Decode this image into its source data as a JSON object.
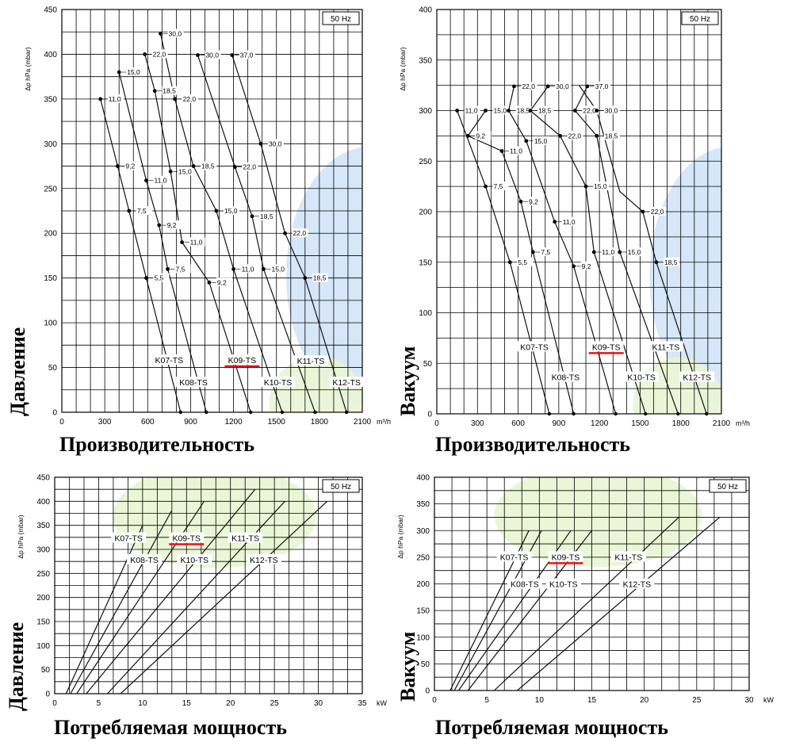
{
  "chart_data": [
    {
      "id": "pressure-flow",
      "type": "line",
      "xlim": [
        0,
        2100
      ],
      "ylim": [
        0,
        450
      ],
      "xticks": [
        0,
        300,
        600,
        900,
        1200,
        1500,
        1800,
        2100
      ],
      "yticks": [
        0,
        50,
        100,
        150,
        200,
        250,
        300,
        350,
        400,
        450
      ],
      "x_unit": "m³/h",
      "ylabel": "Δp hPa (mbar)",
      "frequency": "50 Hz",
      "xlabel_big": "Производительность",
      "ylabel_big": "Давление",
      "highlight_series": "K09-TS",
      "series": [
        {
          "name": "K07-TS",
          "points": [
            [
              270,
              350
            ],
            [
              390,
              275
            ],
            [
              470,
              225
            ],
            [
              590,
              150
            ],
            [
              830,
              0
            ]
          ]
        },
        {
          "name": "K08-TS",
          "points": [
            [
              400,
              380
            ],
            [
              590,
              259
            ],
            [
              680,
              209
            ],
            [
              740,
              160
            ],
            [
              1010,
              0
            ]
          ]
        },
        {
          "name": "K09-TS",
          "points": [
            [
              580,
              400
            ],
            [
              650,
              359
            ],
            [
              760,
              269
            ],
            [
              840,
              190
            ],
            [
              1030,
              145
            ],
            [
              1320,
              0
            ]
          ]
        },
        {
          "name": "K10-TS",
          "points": [
            [
              690,
              423
            ],
            [
              790,
              350
            ],
            [
              920,
              275
            ],
            [
              1080,
              225
            ],
            [
              1200,
              160
            ],
            [
              1540,
              0
            ]
          ]
        },
        {
          "name": "K11-TS",
          "points": [
            [
              950,
              399
            ],
            [
              1210,
              274
            ],
            [
              1330,
              219
            ],
            [
              1410,
              160
            ],
            [
              1770,
              0
            ]
          ]
        },
        {
          "name": "K12-TS",
          "points": [
            [
              1190,
              399
            ],
            [
              1390,
              300
            ],
            [
              1560,
              200
            ],
            [
              1700,
              150
            ],
            [
              1990,
              0
            ]
          ]
        }
      ],
      "point_labels": [
        {
          "x": 270,
          "y": 350,
          "text": "11,0"
        },
        {
          "x": 390,
          "y": 275,
          "text": "9,2"
        },
        {
          "x": 470,
          "y": 225,
          "text": "7,5"
        },
        {
          "x": 590,
          "y": 150,
          "text": "5,5"
        },
        {
          "x": 400,
          "y": 380,
          "text": "15,0"
        },
        {
          "x": 590,
          "y": 259,
          "text": "11,0"
        },
        {
          "x": 680,
          "y": 209,
          "text": "9,2"
        },
        {
          "x": 740,
          "y": 160,
          "text": "7,5"
        },
        {
          "x": 580,
          "y": 400,
          "text": "22,0"
        },
        {
          "x": 650,
          "y": 359,
          "text": "18,5"
        },
        {
          "x": 760,
          "y": 269,
          "text": "15,0"
        },
        {
          "x": 840,
          "y": 190,
          "text": "11,0"
        },
        {
          "x": 1030,
          "y": 145,
          "text": "9,2"
        },
        {
          "x": 690,
          "y": 423,
          "text": "30,0"
        },
        {
          "x": 790,
          "y": 350,
          "text": "22,0"
        },
        {
          "x": 920,
          "y": 275,
          "text": "18,5"
        },
        {
          "x": 1080,
          "y": 225,
          "text": "15,0"
        },
        {
          "x": 1200,
          "y": 160,
          "text": "11,0"
        },
        {
          "x": 950,
          "y": 399,
          "text": "30,0"
        },
        {
          "x": 1210,
          "y": 274,
          "text": "22,0"
        },
        {
          "x": 1330,
          "y": 219,
          "text": "18,5"
        },
        {
          "x": 1410,
          "y": 160,
          "text": "15,0"
        },
        {
          "x": 1190,
          "y": 399,
          "text": "37,0"
        },
        {
          "x": 1390,
          "y": 300,
          "text": "30,0"
        },
        {
          "x": 1560,
          "y": 200,
          "text": "22,0"
        },
        {
          "x": 1700,
          "y": 150,
          "text": "18,5"
        }
      ],
      "legend_labels": [
        {
          "text": "K07-TS",
          "x": 750,
          "y": 58
        },
        {
          "text": "K08-TS",
          "x": 920,
          "y": 33
        },
        {
          "text": "K09-TS",
          "x": 1260,
          "y": 58
        },
        {
          "text": "K10-TS",
          "x": 1510,
          "y": 33
        },
        {
          "text": "K11-TS",
          "x": 1740,
          "y": 57
        },
        {
          "text": "K12-TS",
          "x": 1990,
          "y": 33
        }
      ]
    },
    {
      "id": "vacuum-flow",
      "type": "line",
      "xlim": [
        0,
        2100
      ],
      "ylim": [
        0,
        400
      ],
      "xticks": [
        0,
        300,
        600,
        900,
        1200,
        1500,
        1800,
        2100
      ],
      "yticks": [
        0,
        50,
        100,
        150,
        200,
        250,
        300,
        350,
        400
      ],
      "x_unit": "m³/h",
      "ylabel": "Δp hPa (mbar)",
      "frequency": "50 Hz",
      "xlabel_big": "Производительность",
      "ylabel_big": "Вакуум",
      "highlight_series": "K09-TS",
      "series": [
        {
          "name": "K07-TS",
          "points": [
            [
              150,
              300
            ],
            [
              360,
              225
            ],
            [
              540,
              150
            ],
            [
              830,
              0
            ]
          ]
        },
        {
          "name": "K08-TS",
          "points": [
            [
              360,
              300
            ],
            [
              230,
              275
            ],
            [
              480,
              260
            ],
            [
              620,
              210
            ],
            [
              710,
              160
            ],
            [
              1010,
              0
            ]
          ]
        },
        {
          "name": "K09-TS",
          "points": [
            [
              570,
              324
            ],
            [
              530,
              300
            ],
            [
              660,
              270
            ],
            [
              870,
              190
            ],
            [
              1010,
              146
            ],
            [
              1320,
              0
            ]
          ]
        },
        {
          "name": "K10-TS",
          "points": [
            [
              820,
              324
            ],
            [
              690,
              300
            ],
            [
              910,
              275
            ],
            [
              1100,
              225
            ],
            [
              1160,
              160
            ],
            [
              1540,
              0
            ]
          ]
        },
        {
          "name": "K11-TS",
          "points": [
            [
              1110,
              324
            ],
            [
              1020,
              300
            ],
            [
              1180,
              275
            ],
            [
              1350,
              160
            ],
            [
              1780,
              0
            ]
          ]
        },
        {
          "name": "K12-TS",
          "points": [
            [
              1050,
              325
            ],
            [
              1180,
              300
            ],
            [
              1350,
              220
            ],
            [
              1520,
              200
            ],
            [
              1620,
              150
            ],
            [
              1990,
              0
            ]
          ]
        }
      ],
      "point_labels": [
        {
          "x": 150,
          "y": 300,
          "text": "11,0"
        },
        {
          "x": 230,
          "y": 275,
          "text": "9,2"
        },
        {
          "x": 360,
          "y": 225,
          "text": "7,5"
        },
        {
          "x": 540,
          "y": 150,
          "text": "5,5"
        },
        {
          "x": 360,
          "y": 300,
          "text": "15,0"
        },
        {
          "x": 480,
          "y": 260,
          "text": "11,0"
        },
        {
          "x": 620,
          "y": 210,
          "text": "9,2"
        },
        {
          "x": 710,
          "y": 160,
          "text": "7,5"
        },
        {
          "x": 570,
          "y": 324,
          "text": "22,0"
        },
        {
          "x": 530,
          "y": 300,
          "text": "18,5"
        },
        {
          "x": 660,
          "y": 270,
          "text": "15,0"
        },
        {
          "x": 870,
          "y": 190,
          "text": "11,0"
        },
        {
          "x": 1010,
          "y": 146,
          "text": "9,2"
        },
        {
          "x": 820,
          "y": 324,
          "text": "30,0"
        },
        {
          "x": 690,
          "y": 300,
          "text": "18,5"
        },
        {
          "x": 910,
          "y": 275,
          "text": "22,0"
        },
        {
          "x": 1100,
          "y": 225,
          "text": "15,0"
        },
        {
          "x": 1160,
          "y": 160,
          "text": "11,0"
        },
        {
          "x": 1110,
          "y": 324,
          "text": "37,0"
        },
        {
          "x": 1020,
          "y": 300,
          "text": "22,0"
        },
        {
          "x": 1180,
          "y": 275,
          "text": "18,5"
        },
        {
          "x": 1350,
          "y": 160,
          "text": "15,0"
        },
        {
          "x": 1180,
          "y": 300,
          "text": "30,0"
        },
        {
          "x": 1520,
          "y": 200,
          "text": "22,0"
        },
        {
          "x": 1620,
          "y": 150,
          "text": "18,5"
        }
      ],
      "legend_labels": [
        {
          "text": "K07-TS",
          "x": 720,
          "y": 66
        },
        {
          "text": "K08-TS",
          "x": 950,
          "y": 36
        },
        {
          "text": "K09-TS",
          "x": 1250,
          "y": 66
        },
        {
          "text": "K10-TS",
          "x": 1510,
          "y": 36
        },
        {
          "text": "K11-TS",
          "x": 1690,
          "y": 66
        },
        {
          "text": "K12-TS",
          "x": 1920,
          "y": 36
        }
      ]
    },
    {
      "id": "pressure-power",
      "type": "line",
      "xlim": [
        0,
        35
      ],
      "ylim": [
        0,
        450
      ],
      "xticks": [
        0,
        5,
        10,
        15,
        20,
        25,
        30,
        35
      ],
      "yticks": [
        0,
        50,
        100,
        150,
        200,
        250,
        300,
        350,
        400,
        450
      ],
      "x_unit": "kW",
      "ylabel": "Δp hPa (mbar)",
      "frequency": "50 Hz",
      "xlabel_big": "Потребляемая мощность",
      "ylabel_big": "Давление",
      "highlight_series": "K09-TS",
      "series": [
        {
          "name": "K07-TS",
          "points": [
            [
              1.3,
              0
            ],
            [
              10.0,
              350
            ]
          ]
        },
        {
          "name": "K08-TS",
          "points": [
            [
              1.8,
              0
            ],
            [
              13.3,
              380
            ]
          ]
        },
        {
          "name": "K09-TS",
          "points": [
            [
              2.5,
              0
            ],
            [
              17.0,
              400
            ]
          ]
        },
        {
          "name": "K10-TS",
          "points": [
            [
              3.6,
              0
            ],
            [
              22.8,
              425
            ]
          ]
        },
        {
          "name": "K11-TS",
          "points": [
            [
              6.0,
              0
            ],
            [
              26.2,
              400
            ]
          ]
        },
        {
          "name": "K12-TS",
          "points": [
            [
              7.5,
              0
            ],
            [
              31.0,
              400
            ]
          ]
        }
      ],
      "point_labels": [],
      "legend_labels": [
        {
          "text": "K07-TS",
          "x": 8.4,
          "y": 323
        },
        {
          "text": "K08-TS",
          "x": 10.2,
          "y": 278
        },
        {
          "text": "K09-TS",
          "x": 15.0,
          "y": 323
        },
        {
          "text": "K10-TS",
          "x": 15.9,
          "y": 278
        },
        {
          "text": "K11-TS",
          "x": 21.7,
          "y": 323
        },
        {
          "text": "K12-TS",
          "x": 23.8,
          "y": 278
        }
      ]
    },
    {
      "id": "vacuum-power",
      "type": "line",
      "xlim": [
        0,
        30
      ],
      "ylim": [
        0,
        400
      ],
      "xticks": [
        0,
        5,
        10,
        15,
        20,
        25,
        30
      ],
      "yticks": [
        0,
        50,
        100,
        150,
        200,
        250,
        300,
        350,
        400
      ],
      "x_unit": "kW",
      "ylabel": "Δp hPa (mbar)",
      "frequency": "50 Hz",
      "xlabel_big": "Потребляемая мощность",
      "ylabel_big": "Вакуум",
      "highlight_series": "K09-TS",
      "series": [
        {
          "name": "K07-TS",
          "points": [
            [
              1.5,
              0
            ],
            [
              9.0,
              300
            ]
          ]
        },
        {
          "name": "K08-TS",
          "points": [
            [
              1.9,
              0
            ],
            [
              10.2,
              300
            ]
          ]
        },
        {
          "name": "K09-TS",
          "points": [
            [
              2.3,
              0
            ],
            [
              13.0,
              300
            ]
          ]
        },
        {
          "name": "K10-TS",
          "points": [
            [
              3.2,
              0
            ],
            [
              15.0,
              300
            ]
          ]
        },
        {
          "name": "K11-TS",
          "points": [
            [
              5.7,
              0
            ],
            [
              23.3,
              325
            ]
          ]
        },
        {
          "name": "K12-TS",
          "points": [
            [
              7.9,
              0
            ],
            [
              27.2,
              325
            ]
          ]
        }
      ],
      "point_labels": [],
      "legend_labels": [
        {
          "text": "K07-TS",
          "x": 7.6,
          "y": 250
        },
        {
          "text": "K08-TS",
          "x": 8.6,
          "y": 199
        },
        {
          "text": "K09-TS",
          "x": 12.5,
          "y": 250
        },
        {
          "text": "K10-TS",
          "x": 12.3,
          "y": 199
        },
        {
          "text": "K11-TS",
          "x": 18.5,
          "y": 250
        },
        {
          "text": "K12-TS",
          "x": 19.3,
          "y": 199
        }
      ]
    }
  ],
  "colors": {
    "grid": "#000000",
    "curve": "#111111",
    "highlight": "#e8141c",
    "blue_zone": "#cfe3f8",
    "green_zone": "#e9f5d4"
  }
}
